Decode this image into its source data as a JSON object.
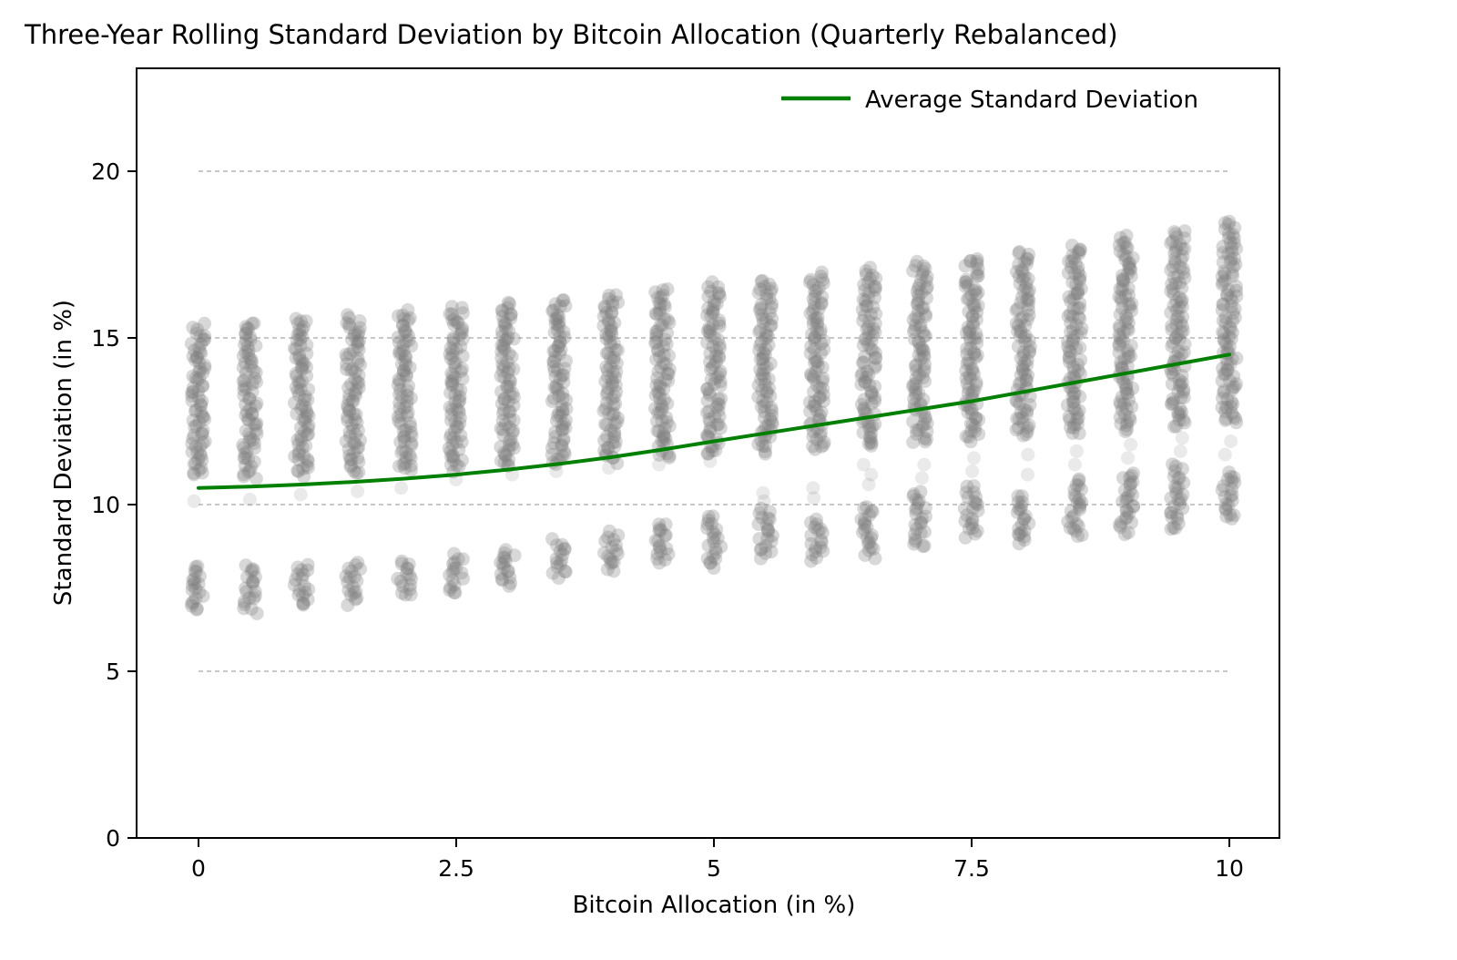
{
  "chart_data": {
    "type": "scatter",
    "title": "Three-Year Rolling Standard Deviation by Bitcoin Allocation (Quarterly Rebalanced)",
    "xlabel": "Bitcoin Allocation (in %)",
    "ylabel": "Standard Deviation (in %)",
    "legend_label": "Average Standard Deviation",
    "legend_position": "upper right",
    "xticks": [
      0,
      2.5,
      5,
      7.5,
      10
    ],
    "xtick_labels": [
      "0",
      "2.5",
      "5",
      "7.5",
      "10"
    ],
    "yticks": [
      0,
      5,
      10,
      15,
      20
    ],
    "ytick_labels": [
      "0",
      "5",
      "10",
      "15",
      "20"
    ],
    "xlim": [
      -0.6,
      10.5
    ],
    "ylim": [
      0,
      23.1
    ],
    "gridlines_y": [
      5,
      10,
      15,
      20
    ],
    "grid_style": "dashed",
    "point_color": "#7f7f7f",
    "point_opacity": 0.3,
    "point_radius": 7.5,
    "line_color": "#008000",
    "allocations": [
      0,
      0.5,
      1,
      1.5,
      2,
      2.5,
      3,
      3.5,
      4,
      4.5,
      5,
      5.5,
      6,
      6.5,
      7,
      7.5,
      8,
      8.5,
      9,
      9.5,
      10
    ],
    "average": [
      10.5,
      10.54,
      10.6,
      10.68,
      10.78,
      10.9,
      11.05,
      11.22,
      11.42,
      11.65,
      11.9,
      12.14,
      12.38,
      12.62,
      12.86,
      13.1,
      13.38,
      13.66,
      13.94,
      14.22,
      14.5
    ],
    "upper_band": [
      [
        10.85,
        15.4
      ],
      [
        10.8,
        15.5
      ],
      [
        10.85,
        15.6
      ],
      [
        10.9,
        15.7
      ],
      [
        10.95,
        15.82
      ],
      [
        11.0,
        15.95
      ],
      [
        11.08,
        16.08
      ],
      [
        11.15,
        16.2
      ],
      [
        11.25,
        16.35
      ],
      [
        11.35,
        16.5
      ],
      [
        11.45,
        16.65
      ],
      [
        11.55,
        16.8
      ],
      [
        11.62,
        16.95
      ],
      [
        11.7,
        17.1
      ],
      [
        11.8,
        17.28
      ],
      [
        11.9,
        17.45
      ],
      [
        12.0,
        17.62
      ],
      [
        12.1,
        17.8
      ],
      [
        12.2,
        18.05
      ],
      [
        12.3,
        18.28
      ],
      [
        12.4,
        18.5
      ]
    ],
    "lower_band": [
      [
        6.8,
        8.2
      ],
      [
        6.75,
        8.2
      ],
      [
        6.9,
        8.25
      ],
      [
        7.0,
        8.3
      ],
      [
        7.2,
        8.35
      ],
      [
        7.3,
        8.5
      ],
      [
        7.5,
        8.7
      ],
      [
        7.8,
        8.95
      ],
      [
        8.0,
        9.2
      ],
      [
        8.2,
        9.5
      ],
      [
        8.1,
        9.7
      ],
      [
        8.4,
        9.9
      ],
      [
        8.3,
        9.6
      ],
      [
        8.4,
        10.0
      ],
      [
        8.7,
        10.4
      ],
      [
        9.0,
        10.6
      ],
      [
        8.8,
        10.3
      ],
      [
        9.0,
        10.8
      ],
      [
        9.1,
        11.0
      ],
      [
        9.2,
        11.2
      ],
      [
        9.5,
        11.0
      ]
    ],
    "mid_points": [
      [
        10.1
      ],
      [
        10.15
      ],
      [
        10.3
      ],
      [
        10.4
      ],
      [
        10.5
      ],
      [
        10.75
      ],
      [
        10.9
      ],
      [
        11.0
      ],
      [
        11.1
      ],
      [
        11.2
      ],
      [
        11.3
      ],
      [
        10.1,
        10.35
      ],
      [
        10.2,
        10.5
      ],
      [
        10.6,
        10.9,
        11.2
      ],
      [
        10.8,
        11.2
      ],
      [
        11.0,
        11.4
      ],
      [
        10.9,
        11.5
      ],
      [
        11.2,
        11.6
      ],
      [
        11.4,
        11.8
      ],
      [
        11.6,
        12.0
      ],
      [
        11.5,
        11.9,
        12.9
      ]
    ]
  }
}
